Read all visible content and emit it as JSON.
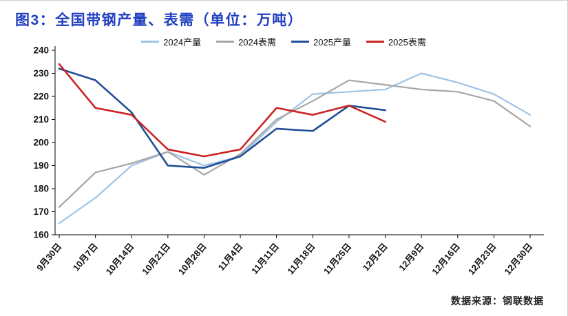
{
  "page": {
    "title": "图3：全国带钢产量、表需（单位：万吨）",
    "title_color": "#2140C0",
    "source_note": "数据来源：钢联数据"
  },
  "chart_data": {
    "type": "line",
    "title": "图3：全国带钢产量、表需（单位：万吨）",
    "unit": "万吨",
    "categories": [
      "9月30日",
      "10月7日",
      "10月14日",
      "10月21日",
      "10月28日",
      "11月4日",
      "11月11日",
      "11月18日",
      "11月25日",
      "12月2日",
      "12月9日",
      "12月16日",
      "12月23日",
      "12月30日"
    ],
    "series": [
      {
        "name": "2024产量",
        "color": "#9DC3E6",
        "values": [
          165,
          176,
          190,
          196,
          190,
          194,
          209,
          221,
          222,
          223,
          230,
          226,
          221,
          212
        ]
      },
      {
        "name": "2024表需",
        "color": "#A6A6A6",
        "values": [
          172,
          187,
          191,
          196,
          186,
          195,
          210,
          218,
          227,
          225,
          223,
          222,
          218,
          207
        ]
      },
      {
        "name": "2025产量",
        "color": "#1F4E96",
        "values": [
          232,
          227,
          213,
          190,
          189,
          194,
          206,
          205,
          216,
          214
        ]
      },
      {
        "name": "2025表需",
        "color": "#CC2222",
        "values": [
          234,
          215,
          212,
          197,
          194,
          197,
          215,
          212,
          216,
          209
        ]
      }
    ],
    "ylim": [
      160,
      240
    ],
    "yticks": [
      160,
      170,
      180,
      190,
      200,
      210,
      220,
      230,
      240
    ],
    "grid": false,
    "legend_position": "top",
    "axis_color": "#000000",
    "legend_labels": [
      "2024产量",
      "2024表需",
      "2025产量",
      "2025表需"
    ]
  }
}
